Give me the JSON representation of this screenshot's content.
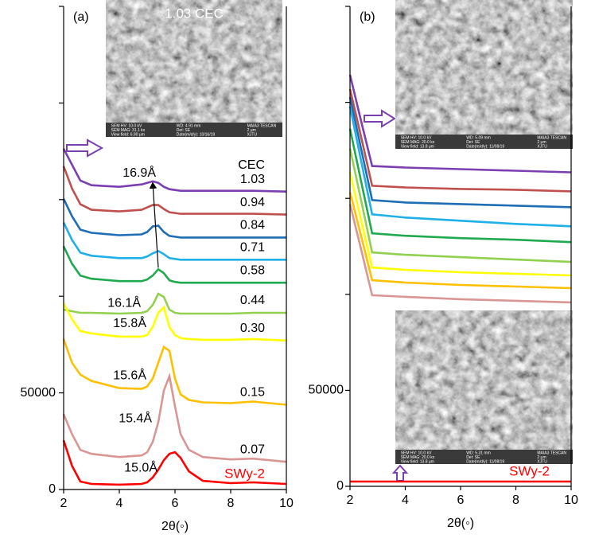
{
  "chart_data": [
    {
      "type": "line",
      "panel_label": "(a)",
      "x_label": "2θ(◦)",
      "legend_title": "CEC",
      "xlim": [
        2,
        10
      ],
      "xticks": [
        2,
        4,
        6,
        8,
        10
      ],
      "ylim": [
        0,
        250000
      ],
      "yticks": [
        0,
        50000
      ],
      "yminorticks": [
        100000,
        150000,
        200000,
        250000
      ],
      "x": [
        2,
        2.3,
        2.6,
        3,
        4,
        4.8,
        5.0,
        5.2,
        5.4,
        5.6,
        5.8,
        6.0,
        6.2,
        6.5,
        7,
        8,
        8.8,
        10
      ],
      "series": [
        {
          "name": "1.03",
          "color": "#7b3fb2",
          "d_spacing": "16.9Å",
          "values": [
            176300,
            168100,
            159900,
            157440,
            156620,
            157850,
            158670,
            159490,
            158670,
            156620,
            155390,
            154980,
            154570,
            154570,
            154570,
            154570,
            154570,
            154160
          ]
        },
        {
          "name": "0.94",
          "color": "#c0504d",
          "values": [
            167280,
            155800,
            147600,
            144730,
            143910,
            144730,
            145960,
            147190,
            147190,
            145140,
            143500,
            143090,
            142680,
            142680,
            142680,
            142680,
            142680,
            142270
          ]
        },
        {
          "name": "0.84",
          "color": "#1f6db5",
          "values": [
            150470,
            141450,
            134480,
            132840,
            131610,
            132020,
            133250,
            136120,
            136530,
            133250,
            131200,
            130790,
            130380,
            130380,
            130380,
            130380,
            130380,
            130380
          ]
        },
        {
          "name": "0.71",
          "color": "#1fb0e8",
          "values": [
            138170,
            129150,
            122590,
            120950,
            119720,
            119720,
            120540,
            122180,
            123410,
            121770,
            119720,
            119310,
            118900,
            118900,
            118900,
            118900,
            118900,
            118900
          ]
        },
        {
          "name": "0.58",
          "color": "#1faa50",
          "values": [
            125870,
            116850,
            110700,
            109060,
            107830,
            107830,
            108650,
            110700,
            113980,
            111930,
            108240,
            107420,
            107010,
            107010,
            107010,
            107010,
            107010,
            107010
          ]
        },
        {
          "name": "0.44",
          "color": "#92d050",
          "d_spacing": "16.1Å",
          "values": [
            93070,
            92250,
            91430,
            91430,
            91020,
            91430,
            92250,
            95530,
            101270,
            99630,
            93070,
            91430,
            91020,
            91020,
            91020,
            91020,
            91430,
            91430
          ]
        },
        {
          "name": "0.30",
          "color": "#ffff00",
          "d_spacing": "15.8Å",
          "values": [
            96350,
            88150,
            82000,
            80770,
            79130,
            79130,
            79950,
            84050,
            91430,
            94300,
            84050,
            79950,
            78310,
            77900,
            77490,
            77490,
            77900,
            77080
          ]
        },
        {
          "name": "0.15",
          "color": "#ffc000",
          "d_spacing": "15.6Å",
          "values": [
            77900,
            65600,
            59450,
            56170,
            52480,
            52070,
            53300,
            57400,
            65600,
            73800,
            71750,
            57400,
            49200,
            46330,
            45100,
            44690,
            45510,
            43870
          ]
        },
        {
          "name": "0.07",
          "color": "#d99694",
          "d_spacing": "15.4Å",
          "values": [
            38950,
            28700,
            20500,
            18450,
            16810,
            17630,
            19270,
            24600,
            34850,
            51250,
            58630,
            43050,
            28700,
            20500,
            16810,
            15580,
            15990,
            14350
          ]
        },
        {
          "name": "SWy-2",
          "color": "#ff0000",
          "d_spacing": "15.0Å",
          "values": [
            25400,
            12300,
            4100,
            2900,
            2500,
            2900,
            3700,
            6200,
            10300,
            15200,
            18500,
            19300,
            16400,
            9400,
            4500,
            3300,
            3700,
            2900
          ]
        }
      ],
      "images": [
        {
          "title": "1.03 CEC",
          "caption": [
            [
              "SEM HV: 10.0 kV",
              "WD: 4.91 mm",
              "MAIA3 TESCAN"
            ],
            [
              "SEM MAG: 31.1 kx",
              "Det: SE",
              "2 μm"
            ],
            [
              "View field: 6.90 μm",
              "Date(m/d/y): 10/16/19",
              "XJTU"
            ]
          ]
        }
      ]
    },
    {
      "type": "line",
      "panel_label": "(b)",
      "x_label": "2θ(◦)",
      "xlim": [
        2,
        10
      ],
      "xticks": [
        2,
        4,
        6,
        8,
        10
      ],
      "ylim": [
        0,
        250000
      ],
      "yticks": [
        0,
        50000
      ],
      "yminorticks": [
        100000,
        150000,
        200000,
        250000
      ],
      "x": [
        2,
        2.4,
        2.8,
        4,
        6,
        8,
        10
      ],
      "series": [
        {
          "color": "#7b3fb2",
          "values": [
            214350,
            190390,
            166850,
            166030,
            165200,
            164370,
            163550
          ]
        },
        {
          "color": "#c0504d",
          "values": [
            206910,
            182130,
            156530,
            155700,
            154880,
            154460,
            153640
          ]
        },
        {
          "color": "#1f6db5",
          "values": [
            202780,
            175940,
            149090,
            147850,
            147030,
            146200,
            145380
          ]
        },
        {
          "color": "#1fb0e8",
          "values": [
            197830,
            169740,
            141660,
            140010,
            138360,
            136700,
            135460
          ]
        },
        {
          "color": "#1faa50",
          "values": [
            186260,
            159010,
            131750,
            130510,
            129270,
            128440,
            127200
          ]
        },
        {
          "color": "#92d050",
          "values": [
            175940,
            149090,
            121840,
            120600,
            119360,
            118120,
            116880
          ]
        },
        {
          "color": "#ffff00",
          "values": [
            163550,
            138770,
            113990,
            112750,
            111510,
            110680,
            109860
          ]
        },
        {
          "color": "#ffc000",
          "values": [
            153220,
            130510,
            107380,
            106140,
            104900,
            104080,
            103250
          ]
        },
        {
          "color": "#d99694",
          "values": [
            147030,
            123490,
            99530,
            98710,
            97470,
            96640,
            95820
          ]
        },
        {
          "name": "SWy-2",
          "color": "#ff0000",
          "values": [
            2480,
            2480,
            2480,
            2480,
            2480,
            2480,
            2480
          ]
        }
      ],
      "images": [
        {
          "caption": [
            [
              "SEM HV: 10.0 kV",
              "WD: 5.09 mm",
              "MAIA3 TESCAN"
            ],
            [
              "SEM MAG: 20.0 kx",
              "Det: SE",
              "2 μm"
            ],
            [
              "View field: 13.8 μm",
              "Date(m/d/y): 11/08/19",
              "XJTU"
            ]
          ]
        },
        {
          "caption": [
            [
              "SEM HV: 10.0 kV",
              "WD: 5.31 mm",
              "MAIA3 TESCAN"
            ],
            [
              "SEM MAG: 20.0 kx",
              "Det: SE",
              "2 μm"
            ],
            [
              "View field: 13.8 μm",
              "Date(m/d/y): 11/08/19",
              "XJTU"
            ]
          ]
        }
      ]
    }
  ]
}
